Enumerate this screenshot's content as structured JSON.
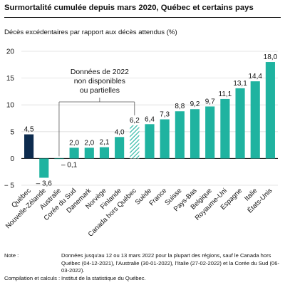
{
  "chart_data": {
    "type": "bar",
    "title": "Surmortalité cumulée depuis mars 2020, Québec et certains pays",
    "ylabel": "Décès excédentaires par rapport aux décès attendus (%)",
    "xlabel": "",
    "ylim": [
      -5,
      20
    ],
    "yticks": [
      -5,
      0,
      5,
      10,
      15,
      20
    ],
    "categories": [
      "Québec",
      "Nouvelle-Zélande",
      "Australie",
      "Corée du Sud",
      "Danemark",
      "Norvège",
      "Finlande",
      "Canada hors Québec",
      "Suède",
      "France",
      "Suisse",
      "Pays-Bas",
      "Belgique",
      "Royaume-Uni",
      "Espagne",
      "Italie",
      "États-Unis"
    ],
    "values": [
      4.5,
      -3.6,
      -0.1,
      2.0,
      2.0,
      2.1,
      4.0,
      6.2,
      6.4,
      7.3,
      8.8,
      9.2,
      9.7,
      11.1,
      13.1,
      14.4,
      18.0
    ],
    "value_labels": [
      "4,5",
      "– 3,6",
      "– 0,1",
      "2,0",
      "2,0",
      "2,1",
      "4,0",
      "6,2",
      "6,4",
      "7,3",
      "8,8",
      "9,2",
      "9,7",
      "11,1",
      "13,1",
      "14,4",
      "18,0"
    ],
    "bar_style": [
      "highlight",
      "normal",
      "normal",
      "normal",
      "normal",
      "normal",
      "normal",
      "hatched",
      "normal",
      "normal",
      "normal",
      "normal",
      "normal",
      "normal",
      "normal",
      "normal",
      "normal"
    ],
    "colors": {
      "highlight": "#0d2b4e",
      "normal": "#1fb3a0"
    },
    "annotation": {
      "lines": [
        "Données de 2022",
        "non disponibles",
        "ou partielles"
      ],
      "targets": [
        "Australie",
        "Canada hors Québec"
      ]
    },
    "grid": true,
    "legend": "none"
  },
  "notes": {
    "note_key": "Note :",
    "note_text": "Données jusqu'au 12 ou 13 mars 2022 pour la plupart des régions, sauf le Canada hors Québec (04-12-2021), l'Australie (30-01-2022), l'Italie (27-02-2022) et la Corée du Sud (06-03-2022).",
    "source_key": "Compilation et calculs :",
    "source_text": "Institut de la statistique du Québec."
  }
}
